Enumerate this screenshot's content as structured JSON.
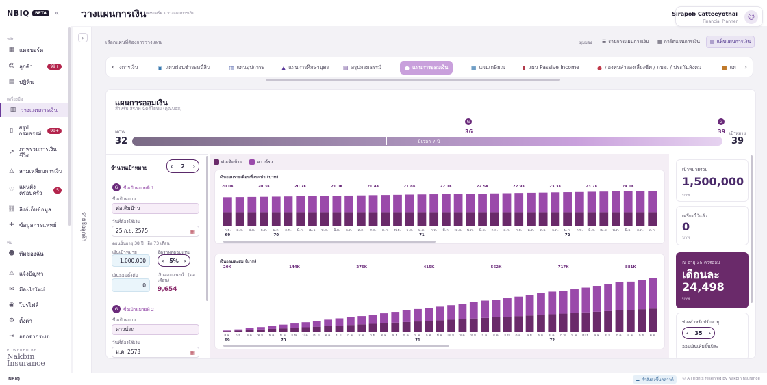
{
  "app": {
    "logo": "NBIQ",
    "beta": "BETA"
  },
  "sidebar": {
    "section_main": "หลัก",
    "section_tools": "เครื่องมือ",
    "section_team": "ทีม",
    "items": [
      {
        "label": "แดชบอร์ด",
        "icon": "grid-icon"
      },
      {
        "label": "ลูกค้า",
        "icon": "user-icon",
        "count": "99+"
      },
      {
        "label": "ปฏิทิน",
        "icon": "calendar-icon"
      },
      {
        "label": "วางแผนการเงิน",
        "icon": "bar-chart-icon"
      },
      {
        "label": "สรุปกรมธรรม์",
        "icon": "document-icon",
        "count": "99+"
      },
      {
        "label": "ภาพรวมการเงินชีวิต",
        "icon": "trend-icon"
      },
      {
        "label": "สามเหลี่ยมการเงิน",
        "icon": "triangle-icon"
      },
      {
        "label": "แผนผังครอบครัว",
        "icon": "heart-icon",
        "count": "5"
      },
      {
        "label": "ลิงก์เก็บข้อมูล",
        "icon": "link-icon"
      },
      {
        "label": "ข้อมูลการแพทย์",
        "icon": "medical-icon"
      },
      {
        "label": "ทีมของฉัน",
        "icon": "team-icon"
      },
      {
        "label": "แจ้งปัญหา",
        "icon": "alert-icon"
      },
      {
        "label": "มีอะไรใหม่",
        "icon": "chat-icon"
      },
      {
        "label": "โปรไฟล์",
        "icon": "profile-icon"
      },
      {
        "label": "ตั้งค่า",
        "icon": "gear-icon"
      },
      {
        "label": "ออกจากระบบ",
        "icon": "logout-icon"
      }
    ],
    "powered_by": "POWERED BY",
    "brand_line1": "Nakbin",
    "brand_line2": "Insurance"
  },
  "header": {
    "title": "วางแผนการเงิน",
    "breadcrumb": "แดชบอร์ด › วางแผนการเงิน",
    "user_name": "Sirapob Catteeyothai",
    "user_role": "Financial Planner"
  },
  "collapsed_panel": {
    "label": "รายชื่อลูกค้า"
  },
  "select_bar": {
    "label": "เลือกแผนที่ต้องการวางแผน",
    "view_label": "มุมมอง",
    "views": [
      {
        "label": "รายการแผนการเงิน",
        "icon": "list-icon",
        "active": false
      },
      {
        "label": "การ์ดแผนการเงิน",
        "icon": "cards-icon",
        "active": false
      },
      {
        "label": "แท็บแผนการเงิน",
        "icon": "tabs-icon",
        "active": true
      }
    ]
  },
  "tabs": [
    {
      "label": "งการเงิน",
      "icon": ""
    },
    {
      "label": "แผนผ่อนชำระหนี้สิน",
      "icon": "debt-icon"
    },
    {
      "label": "แผนอุปการะ",
      "icon": "family-icon"
    },
    {
      "label": "แผนการศึกษาบุตร",
      "icon": "graduation-icon"
    },
    {
      "label": "สรุปกรมธรรม์",
      "icon": "policy-icon"
    },
    {
      "label": "แผนการออมเงิน",
      "icon": "piggy-icon",
      "active": true
    },
    {
      "label": "แผนเกษียณ",
      "icon": "retire-icon"
    },
    {
      "label": "แผน Passive Income",
      "icon": "income-icon"
    },
    {
      "label": "กองทุนสำรองเลี้ยงชีพ / กบข. / ประกันสังคม",
      "icon": "fund-icon"
    },
    {
      "label": "แผ",
      "icon": "box-icon"
    }
  ],
  "plan": {
    "title": "แผนการออมเงิน",
    "subtitle": "สำหรับ สิรภพ ฉัตตีโยทัย (คุณบอส)",
    "now_label": "NOW",
    "now_age": "32",
    "milestone1_badge": "G",
    "milestone1_age": "36",
    "milestone2_badge": "G",
    "milestone2_age": "39",
    "goal_label": "เป้าหมาย",
    "goal_age": "39",
    "duration": "มีเวลา 7 ปี"
  },
  "form": {
    "goal_count_label": "จำนวนเป้าหมาย",
    "goal_count": "2",
    "goal1": {
      "badge": "G",
      "heading": "ชื่อเป้าหมายที่ 1",
      "name_label": "ชื่อเป้าหมาย",
      "name_value": "ต่อเติมบ้าน",
      "date_label": "วันที่ต้องใช้เงิน",
      "date_value": "25 ก.ย. 2575",
      "age_note": "ตอนนั้นอายุ 38 ปี · อีก 73 เดือน",
      "amount_label": "เงินเป้าหมาย",
      "amount_value": "1,000,000",
      "rate_label": "อัตราผลตอบแทน",
      "rate_value": "5%",
      "initial_label": "เงินออมตั้งต้น",
      "initial_value": "0",
      "monthly_label": "เงินออมแนะนำ (ต่อเดือน)",
      "monthly_value": "9,654"
    },
    "goal2": {
      "badge": "G",
      "heading": "ชื่อเป้าหมายที่ 2",
      "name_label": "ชื่อเป้าหมาย",
      "name_value": "ดาวน์รถ",
      "date_label": "วันที่ต้องใช้เงิน",
      "date_value": "ม.ค. 2573"
    }
  },
  "legend": [
    {
      "label": "ต่อเติมบ้าน",
      "color": "#6a2a6a"
    },
    {
      "label": "ดาวน์รถ",
      "color": "#9a4aaa"
    }
  ],
  "chart_data": [
    {
      "type": "bar",
      "title": "เงินออมรายเดือนที่แนะนำ (บาท)",
      "categories": [
        "ก.ย.",
        "ต.ค.",
        "พ.ย.",
        "ธ.ค.",
        "ม.ค.",
        "ก.พ.",
        "มี.ค.",
        "เม.ย.",
        "พ.ค.",
        "มิ.ย.",
        "ก.ค.",
        "ส.ค.",
        "ก.ย.",
        "ต.ค.",
        "พ.ย.",
        "ธ.ค.",
        "ม.ค.",
        "ก.พ.",
        "มี.ค.",
        "เม.ย.",
        "พ.ค.",
        "มิ.ย.",
        "ก.ค.",
        "ส.ค.",
        "ก.ย.",
        "ต.ค.",
        "พ.ย.",
        "ธ.ค.",
        "ม.ค.",
        "ก.พ.",
        "มี.ค.",
        "เม.ย.",
        "พ.ค.",
        "มิ.ย.",
        "ก.ค.",
        "ส.ค."
      ],
      "value_labels": [
        "20.0K",
        "",
        "",
        "20.3K",
        "",
        "",
        "20.7K",
        "",
        "",
        "21.0K",
        "",
        "",
        "21.4K",
        "",
        "",
        "21.8K",
        "",
        "",
        "22.1K",
        "",
        "",
        "22.5K",
        "",
        "",
        "22.9K",
        "",
        "",
        "23.3K",
        "",
        "",
        "23.7K",
        "",
        "",
        "24.1K",
        "",
        ""
      ],
      "series": [
        {
          "name": "ต่อเติมบ้าน",
          "values": [
            9654,
            9654,
            9654,
            9654,
            9654,
            9654,
            9654,
            9654,
            9654,
            9654,
            9654,
            9654,
            9654,
            9654,
            9654,
            9654,
            9654,
            9654,
            9654,
            9654,
            9654,
            9654,
            9654,
            9654,
            9654,
            9654,
            9654,
            9654,
            9654,
            9654,
            9654,
            9654,
            9654,
            9654,
            9654,
            9654
          ]
        },
        {
          "name": "ดาวน์รถ",
          "values": [
            10346,
            10450,
            10550,
            10646,
            10760,
            10880,
            11046,
            11160,
            11250,
            11346,
            11460,
            11580,
            11746,
            11860,
            11980,
            12146,
            12260,
            12360,
            12446,
            12560,
            12680,
            12846,
            12960,
            13080,
            13246,
            13360,
            13480,
            13646,
            13760,
            13880,
            14046,
            14160,
            14280,
            14446,
            14500,
            14550
          ]
        }
      ],
      "year_labels": [
        {
          "index": 0,
          "label": "69"
        },
        {
          "index": 4,
          "label": "70"
        },
        {
          "index": 16,
          "label": "71"
        },
        {
          "index": 28,
          "label": "72"
        }
      ],
      "ylim": [
        0,
        30000
      ]
    },
    {
      "type": "bar",
      "title": "เงินออมสะสม (บาท)",
      "categories": [
        "ส.ค.",
        "ก.ย.",
        "ต.ค.",
        "พ.ย.",
        "ธ.ค.",
        "ม.ค.",
        "ก.พ.",
        "มี.ค.",
        "เม.ย.",
        "พ.ค.",
        "มิ.ย.",
        "ก.ค.",
        "ส.ค.",
        "ก.ย.",
        "ต.ค.",
        "พ.ย.",
        "ธ.ค.",
        "ม.ค.",
        "ก.พ.",
        "มี.ค.",
        "เม.ย.",
        "พ.ค.",
        "มิ.ย.",
        "ก.ค.",
        "ส.ค.",
        "ก.ย.",
        "ต.ค.",
        "พ.ย.",
        "ธ.ค.",
        "ม.ค.",
        "ก.พ.",
        "มี.ค.",
        "เม.ย.",
        "พ.ค.",
        "มิ.ย.",
        "ก.ค.",
        "ส.ค.",
        "ก.ย.",
        "ต.ค."
      ],
      "value_labels": [
        "20K",
        "",
        "",
        "",
        "",
        "",
        "144K",
        "",
        "",
        "",
        "",
        "",
        "276K",
        "",
        "",
        "",
        "",
        "",
        "415K",
        "",
        "",
        "",
        "",
        "",
        "562K",
        "",
        "",
        "",
        "",
        "",
        "717K",
        "",
        "",
        "",
        "",
        "",
        "881K",
        "",
        ""
      ],
      "series": [
        {
          "name": "ต่อเติมบ้าน",
          "values": [
            9654,
            19350,
            29090,
            38870,
            48690,
            58550,
            68450,
            78390,
            88370,
            98390,
            108450,
            118550,
            128700,
            138890,
            149120,
            159390,
            169700,
            180050,
            190450,
            200890,
            211370,
            221890,
            232460,
            243070,
            253720,
            264410,
            275150,
            285930,
            296750,
            307620,
            318530,
            329480,
            340480,
            351520,
            362600,
            373730,
            384900,
            396110,
            407370
          ]
        },
        {
          "name": "ดาวน์รถ",
          "values": [
            10346,
            20960,
            31800,
            42940,
            54370,
            66080,
            75550,
            88000,
            100700,
            113600,
            126700,
            140000,
            147300,
            161000,
            175000,
            189300,
            203900,
            218800,
            224550,
            240000,
            255800,
            271900,
            288300,
            305000,
            308280,
            325600,
            343200,
            361100,
            379300,
            397800,
            398470,
            417200,
            436200,
            455500,
            475100,
            495000,
            496100,
            515800,
            535800
          ]
        }
      ],
      "year_labels": [
        {
          "index": 0,
          "label": "69"
        },
        {
          "index": 5,
          "label": "70"
        },
        {
          "index": 17,
          "label": "71"
        },
        {
          "index": 29,
          "label": "72"
        }
      ],
      "ylim": [
        0,
        1000000
      ]
    }
  ],
  "summary": {
    "target_label": "เป้าหมายรวม",
    "target_value": "1,500,000",
    "target_unit": "บาท",
    "prepared_label": "เตรียมไว้แล้ว",
    "prepared_value": "0",
    "prepared_unit": "บาท",
    "monthly_label": "ณ อายุ 35 ควรออม",
    "monthly_big": "เดือนละ",
    "monthly_value": "24,498",
    "monthly_unit": "บาท",
    "adjust_label": "ช่องสำหรับปรับอายุ",
    "adjust_value": "35",
    "extra_label": "ออมเงินเพิ่มขึ้นปีละ"
  },
  "footer": {
    "left": "NBIQ",
    "cloud_status": "กำลังส่งขึ้นคลาวด์",
    "copyright": "© All rights reserved by Nakbininsurance"
  }
}
